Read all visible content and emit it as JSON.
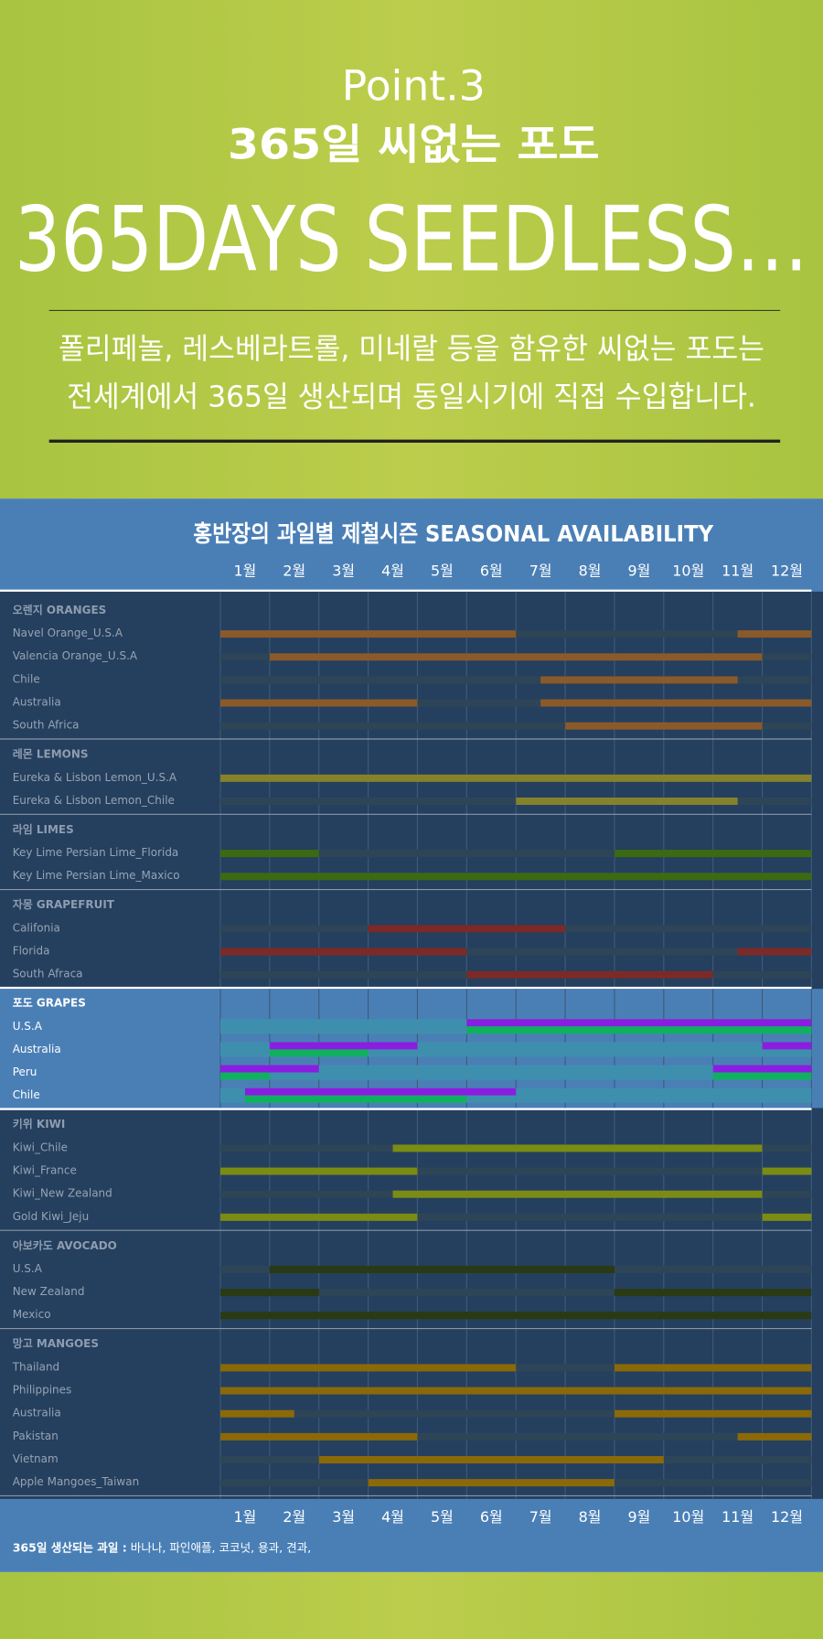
{
  "header": {
    "point": "Point.3",
    "title_ko": "365일 씨없는 포도",
    "title_en": "365DAYS SEEDLESS…",
    "lines": [
      "폴리페놀, 레스베라트롤, 미네랄 등을 함유한 씨없는 포도는",
      "전세계에서 365일 생산되며 동일시기에 직접 수입합니다."
    ]
  },
  "chart": {
    "title": "홍반장의 과일별 제철시즌 SEASONAL AVAILABILITY",
    "months": [
      "1월",
      "2월",
      "3월",
      "4월",
      "5월",
      "6월",
      "7월",
      "8월",
      "9월",
      "10월",
      "11월",
      "12월"
    ],
    "sections": [
      {
        "label": "오렌지 ORANGES",
        "color": "#8a5a2a",
        "rows": [
          {
            "label": "Navel Orange_U.S.A",
            "ranges": [
              [
                0,
                6
              ],
              [
                10.5,
                12
              ]
            ]
          },
          {
            "label": "Valencia Orange_U.S.A",
            "ranges": [
              [
                1,
                11
              ]
            ]
          },
          {
            "label": "Chile",
            "ranges": [
              [
                6.5,
                10.5
              ]
            ]
          },
          {
            "label": "Australia",
            "ranges": [
              [
                0,
                4
              ],
              [
                6.5,
                12
              ]
            ]
          },
          {
            "label": "South Africa",
            "ranges": [
              [
                7,
                11
              ]
            ]
          }
        ]
      },
      {
        "label": "레몬 LEMONS",
        "color": "#86822c",
        "rows": [
          {
            "label": "Eureka & Lisbon Lemon_U.S.A",
            "ranges": [
              [
                0,
                12
              ]
            ]
          },
          {
            "label": "Eureka & Lisbon Lemon_Chile",
            "ranges": [
              [
                6,
                10.5
              ]
            ]
          }
        ]
      },
      {
        "label": "라임 LIMES",
        "color": "#3c6a12",
        "rows": [
          {
            "label": "Key Lime Persian Lime_Florida",
            "ranges": [
              [
                0,
                2
              ],
              [
                8,
                12
              ]
            ]
          },
          {
            "label": "Key Lime Persian Lime_Maxico",
            "ranges": [
              [
                0,
                12
              ]
            ]
          }
        ]
      },
      {
        "label": "자몽 GRAPEFRUIT",
        "color": "#7c2a28",
        "rows": [
          {
            "label": "Califonia",
            "ranges": [
              [
                3,
                7
              ]
            ]
          },
          {
            "label": "Florida",
            "ranges": [
              [
                0,
                5
              ],
              [
                10.5,
                12
              ]
            ]
          },
          {
            "label": "South Afraca",
            "ranges": [
              [
                5,
                10
              ]
            ]
          }
        ]
      },
      {
        "label": "포도 GRAPES",
        "color": "#8a1ee0",
        "color_b": "#10b060",
        "rows": [
          {
            "label": "U.S.A",
            "ranges": [
              [
                5,
                12
              ]
            ],
            "ranges_b": [
              [
                5,
                12
              ]
            ]
          },
          {
            "label": "Australia",
            "ranges": [
              [
                1,
                4
              ],
              [
                11,
                12
              ]
            ],
            "ranges_b": [
              [
                1,
                3
              ]
            ]
          },
          {
            "label": "Peru",
            "ranges": [
              [
                0,
                2
              ],
              [
                10,
                12
              ]
            ],
            "ranges_b": [
              [
                0,
                1
              ],
              [
                10,
                12
              ]
            ]
          },
          {
            "label": "Chile",
            "ranges": [
              [
                0.5,
                6
              ]
            ],
            "ranges_b": [
              [
                0.5,
                5
              ]
            ]
          }
        ]
      },
      {
        "label": "키위 KIWI",
        "color": "#7a8c14",
        "rows": [
          {
            "label": "Kiwi_Chile",
            "ranges": [
              [
                3.5,
                11
              ]
            ]
          },
          {
            "label": "Kiwi_France",
            "ranges": [
              [
                0,
                4
              ],
              [
                11,
                12
              ]
            ]
          },
          {
            "label": "Kiwi_New Zealand",
            "ranges": [
              [
                3.5,
                11
              ]
            ]
          },
          {
            "label": "Gold Kiwi_Jeju",
            "ranges": [
              [
                0,
                4
              ],
              [
                11,
                12
              ]
            ]
          }
        ]
      },
      {
        "label": "아보카도 AVOCADO",
        "color": "#2a3a14",
        "rows": [
          {
            "label": "U.S.A",
            "ranges": [
              [
                1,
                8
              ]
            ]
          },
          {
            "label": "New Zealand",
            "ranges": [
              [
                0,
                2
              ],
              [
                8,
                12
              ]
            ]
          },
          {
            "label": "Mexico",
            "ranges": [
              [
                0,
                12
              ]
            ]
          }
        ]
      },
      {
        "label": "망고 MANGOES",
        "color": "#8a6a08",
        "rows": [
          {
            "label": "Thailand",
            "ranges": [
              [
                0,
                6
              ],
              [
                8,
                12
              ]
            ]
          },
          {
            "label": "Philippines",
            "ranges": [
              [
                0,
                12
              ]
            ]
          },
          {
            "label": "Australia",
            "ranges": [
              [
                0,
                1.5
              ],
              [
                8,
                12
              ]
            ]
          },
          {
            "label": "Pakistan",
            "ranges": [
              [
                0,
                4
              ],
              [
                10.5,
                12
              ]
            ]
          },
          {
            "label": "Vietnam",
            "ranges": [
              [
                2,
                9
              ]
            ]
          },
          {
            "label": "Apple Mangoes_Taiwan",
            "ranges": [
              [
                3,
                8
              ]
            ]
          }
        ]
      }
    ]
  },
  "footer": {
    "label": "365일 생산되는 과일 :",
    "text": "바나나, 파인애플, 코코넛, 용과, 견과,"
  }
}
